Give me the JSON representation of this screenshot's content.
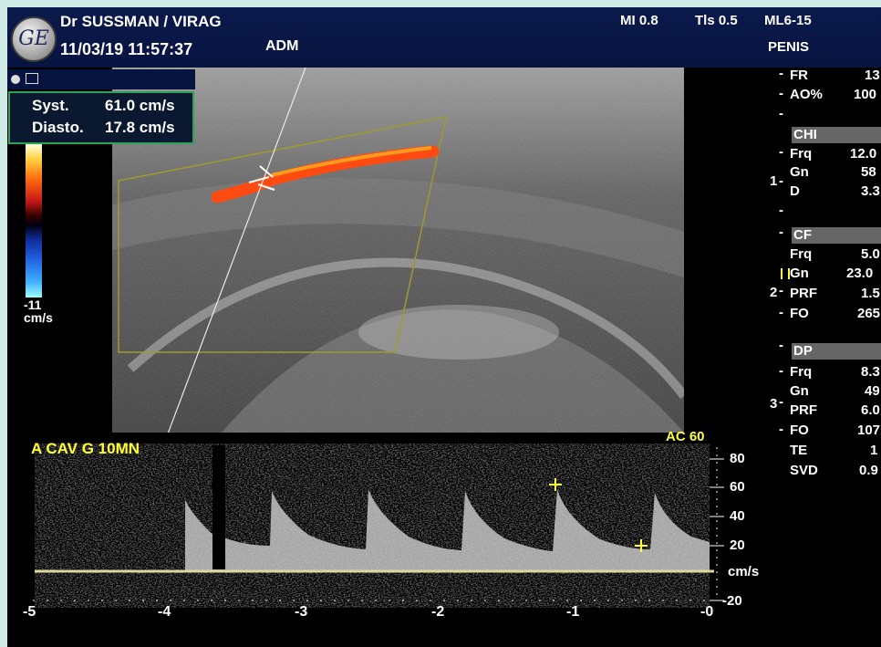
{
  "header": {
    "operator": "Dr SUSSMAN / VIRAG",
    "datetime": "11/03/19 11:57:37",
    "adm": "ADM",
    "mi": "MI 0.8",
    "tis": "Tls 0.5",
    "probe": "ML6-15",
    "preset": "PENIS",
    "logo_text": "GE"
  },
  "measurements": {
    "syst_label": "Syst.",
    "syst_value": "61.0 cm/s",
    "diast_label": "Diasto.",
    "diast_value": "17.8 cm/s"
  },
  "colorbar": {
    "min_label": "-11",
    "unit": "cm/s"
  },
  "params": {
    "fr_label": "FR",
    "fr_value": "13",
    "ao_label": "AO%",
    "ao_value": "100",
    "chi_title": "CHI",
    "chi_frq_label": "Frq",
    "chi_frq_value": "12.0",
    "chi_gn_label": "Gn",
    "chi_gn_value": "58",
    "chi_d_label": "D",
    "chi_d_value": "3.3",
    "cf_title": "CF",
    "cf_frq_label": "Frq",
    "cf_frq_value": "5.0",
    "cf_gn_label": "Gn",
    "cf_gn_value": "23.0",
    "cf_prf_label": "PRF",
    "cf_prf_value": "1.5",
    "cf_fo_label": "FO",
    "cf_fo_value": "265",
    "dp_title": "DP",
    "dp_frq_label": "Frq",
    "dp_frq_value": "8.3",
    "dp_gn_label": "Gn",
    "dp_gn_value": "49",
    "dp_prf_label": "PRF",
    "dp_prf_value": "6.0",
    "dp_fo_label": "FO",
    "dp_fo_value": "107",
    "dp_te_label": "TE",
    "dp_te_value": "1",
    "dp_svd_label": "SVD",
    "dp_svd_value": "0.9",
    "marker1": "1",
    "marker2": "2",
    "marker3": "3"
  },
  "doppler": {
    "label": "A CAV G 10MN",
    "angle": "AC 60",
    "scale_unit": "cm/s",
    "scale_ticks": [
      "80",
      "60",
      "40",
      "20",
      "-20"
    ],
    "time_ticks": [
      "-5",
      "-4",
      "-3",
      "-2",
      "-1",
      "-0"
    ]
  },
  "colors": {
    "header_bg": "#0b1a4c",
    "accent_yellow": "#ffff3c",
    "meas_border": "#2aa35a",
    "frame": "#cfe9e4"
  }
}
